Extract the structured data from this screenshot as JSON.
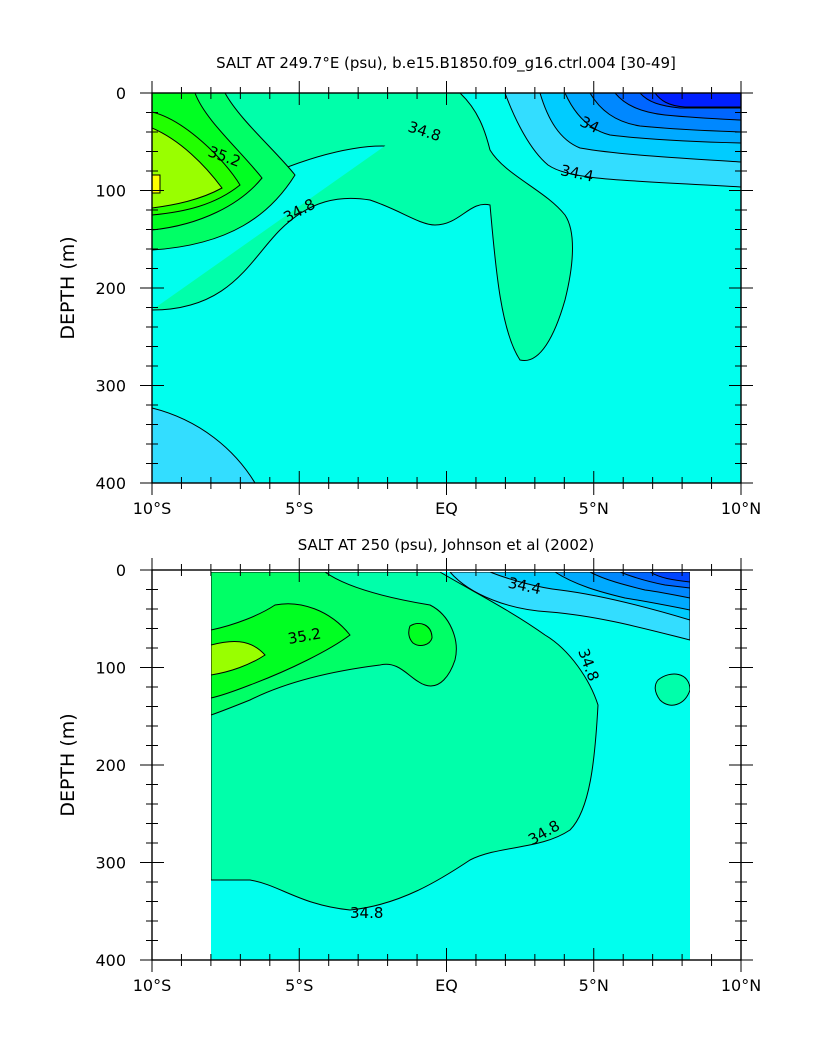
{
  "chart_data": [
    {
      "type": "contour",
      "title": "SALT AT 249.7°E (psu), b.e15.B1850.f09_g16.ctrl.004 [30-49]",
      "xlabel": "",
      "ylabel": "DEPTH (m)",
      "xlim": [
        -10,
        10
      ],
      "ylim": [
        400,
        0
      ],
      "x_ticks": [
        -10,
        -5,
        0,
        5,
        10
      ],
      "x_tick_labels": [
        "10°S",
        "5°S",
        "EQ",
        "5°N",
        "10°N"
      ],
      "y_ticks": [
        0,
        100,
        200,
        300,
        400
      ],
      "y_tick_labels": [
        "0",
        "100",
        "200",
        "300",
        "400"
      ],
      "contour_labels": [
        "35.2",
        "34.8",
        "34.8",
        "34",
        "34.4"
      ],
      "colors": {
        "fresh_deep": "#0020ff",
        "fresh": "#0088ff",
        "mid_fresh": "#33ddff",
        "base": "#00ffee",
        "mid": "#00ffaa",
        "salty": "#00ff44",
        "saltier": "#88ff00",
        "saltiest": "#ffff00"
      }
    },
    {
      "type": "contour",
      "title": "SALT AT 250 (psu), Johnson et al (2002)",
      "xlabel": "",
      "ylabel": "DEPTH (m)",
      "xlim": [
        -10,
        10
      ],
      "ylim": [
        400,
        0
      ],
      "x_ticks": [
        -10,
        -5,
        0,
        5,
        10
      ],
      "x_tick_labels": [
        "10°S",
        "5°S",
        "EQ",
        "5°N",
        "10°N"
      ],
      "y_ticks": [
        0,
        100,
        200,
        300,
        400
      ],
      "y_tick_labels": [
        "0",
        "100",
        "200",
        "300",
        "400"
      ],
      "contour_labels": [
        "35.2",
        "34.4",
        "34.8",
        "34.8",
        "34.8"
      ],
      "data_extent_lat": [
        -8,
        8.2
      ],
      "data_extent_depth": [
        5,
        400
      ]
    }
  ]
}
